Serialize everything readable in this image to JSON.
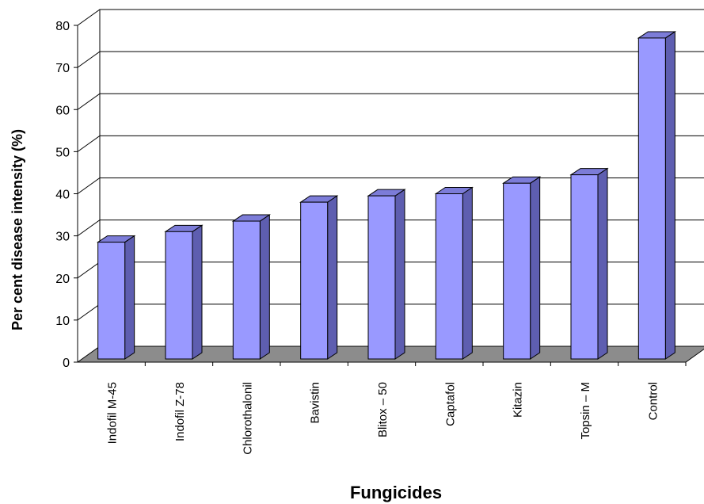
{
  "chart_data": {
    "type": "bar",
    "categories": [
      "Indofil M-45",
      "Indofil Z-78",
      "Chlorothalonil",
      "Bavistin",
      "Blitox – 50",
      "Captafol",
      "Kitazin",
      "Topsin – M",
      "Control"
    ],
    "values": [
      28.5,
      31,
      33.5,
      38,
      39.5,
      40,
      42.5,
      44.5,
      77
    ],
    "xlabel": "Fungicides",
    "ylabel": "Per cent disease intensity (%)",
    "ylim": [
      0,
      80
    ],
    "yticks": [
      0,
      10,
      20,
      30,
      40,
      50,
      60,
      70,
      80
    ],
    "grid": true,
    "style": "3d-bar",
    "colors": {
      "bar_front": "#9999ff",
      "bar_side": "#5e5eb0",
      "bar_top": "#7c7cd8",
      "floor": "#8c8c8c",
      "grid": "#000000"
    }
  }
}
